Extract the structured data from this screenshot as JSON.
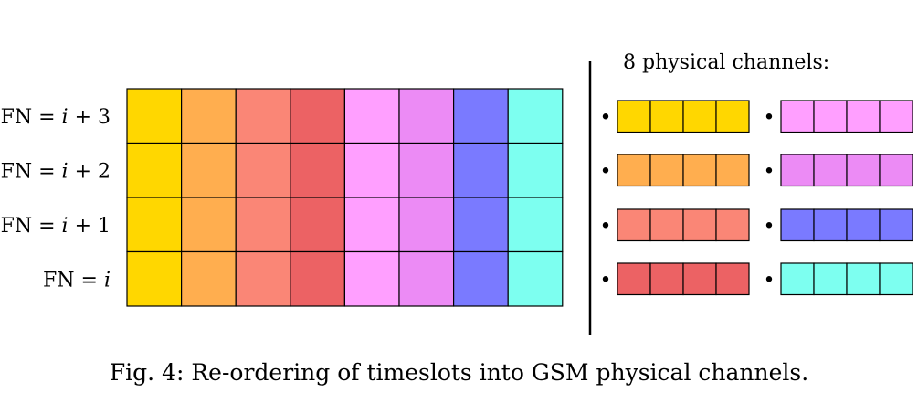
{
  "frame_rows": [
    {
      "label": "FN = i + 3",
      "fn": "FN",
      "eq": "=",
      "var": "i",
      "op": "+",
      "num": "3"
    },
    {
      "label": "FN = i + 2",
      "fn": "FN",
      "eq": "=",
      "var": "i",
      "op": "+",
      "num": "2"
    },
    {
      "label": "FN = i + 1",
      "fn": "FN",
      "eq": "=",
      "var": "i",
      "op": "+",
      "num": "1"
    },
    {
      "label": "FN = i",
      "fn": "FN",
      "eq": "=",
      "var": "i",
      "op": "",
      "num": ""
    }
  ],
  "timeslot_colors": [
    "#FFD700",
    "#FFAE4F",
    "#FA8676",
    "#EC6264",
    "#FF9FFF",
    "#EC8BF5",
    "#7A7AFF",
    "#7DFFF0"
  ],
  "channels_title": "8 physical channels:",
  "channels_bullet": "•",
  "channels_per_row": 4,
  "channel_blocks_per_channel": 4,
  "caption": "Fig. 4: Re-ordering of timeslots into GSM physical channels."
}
